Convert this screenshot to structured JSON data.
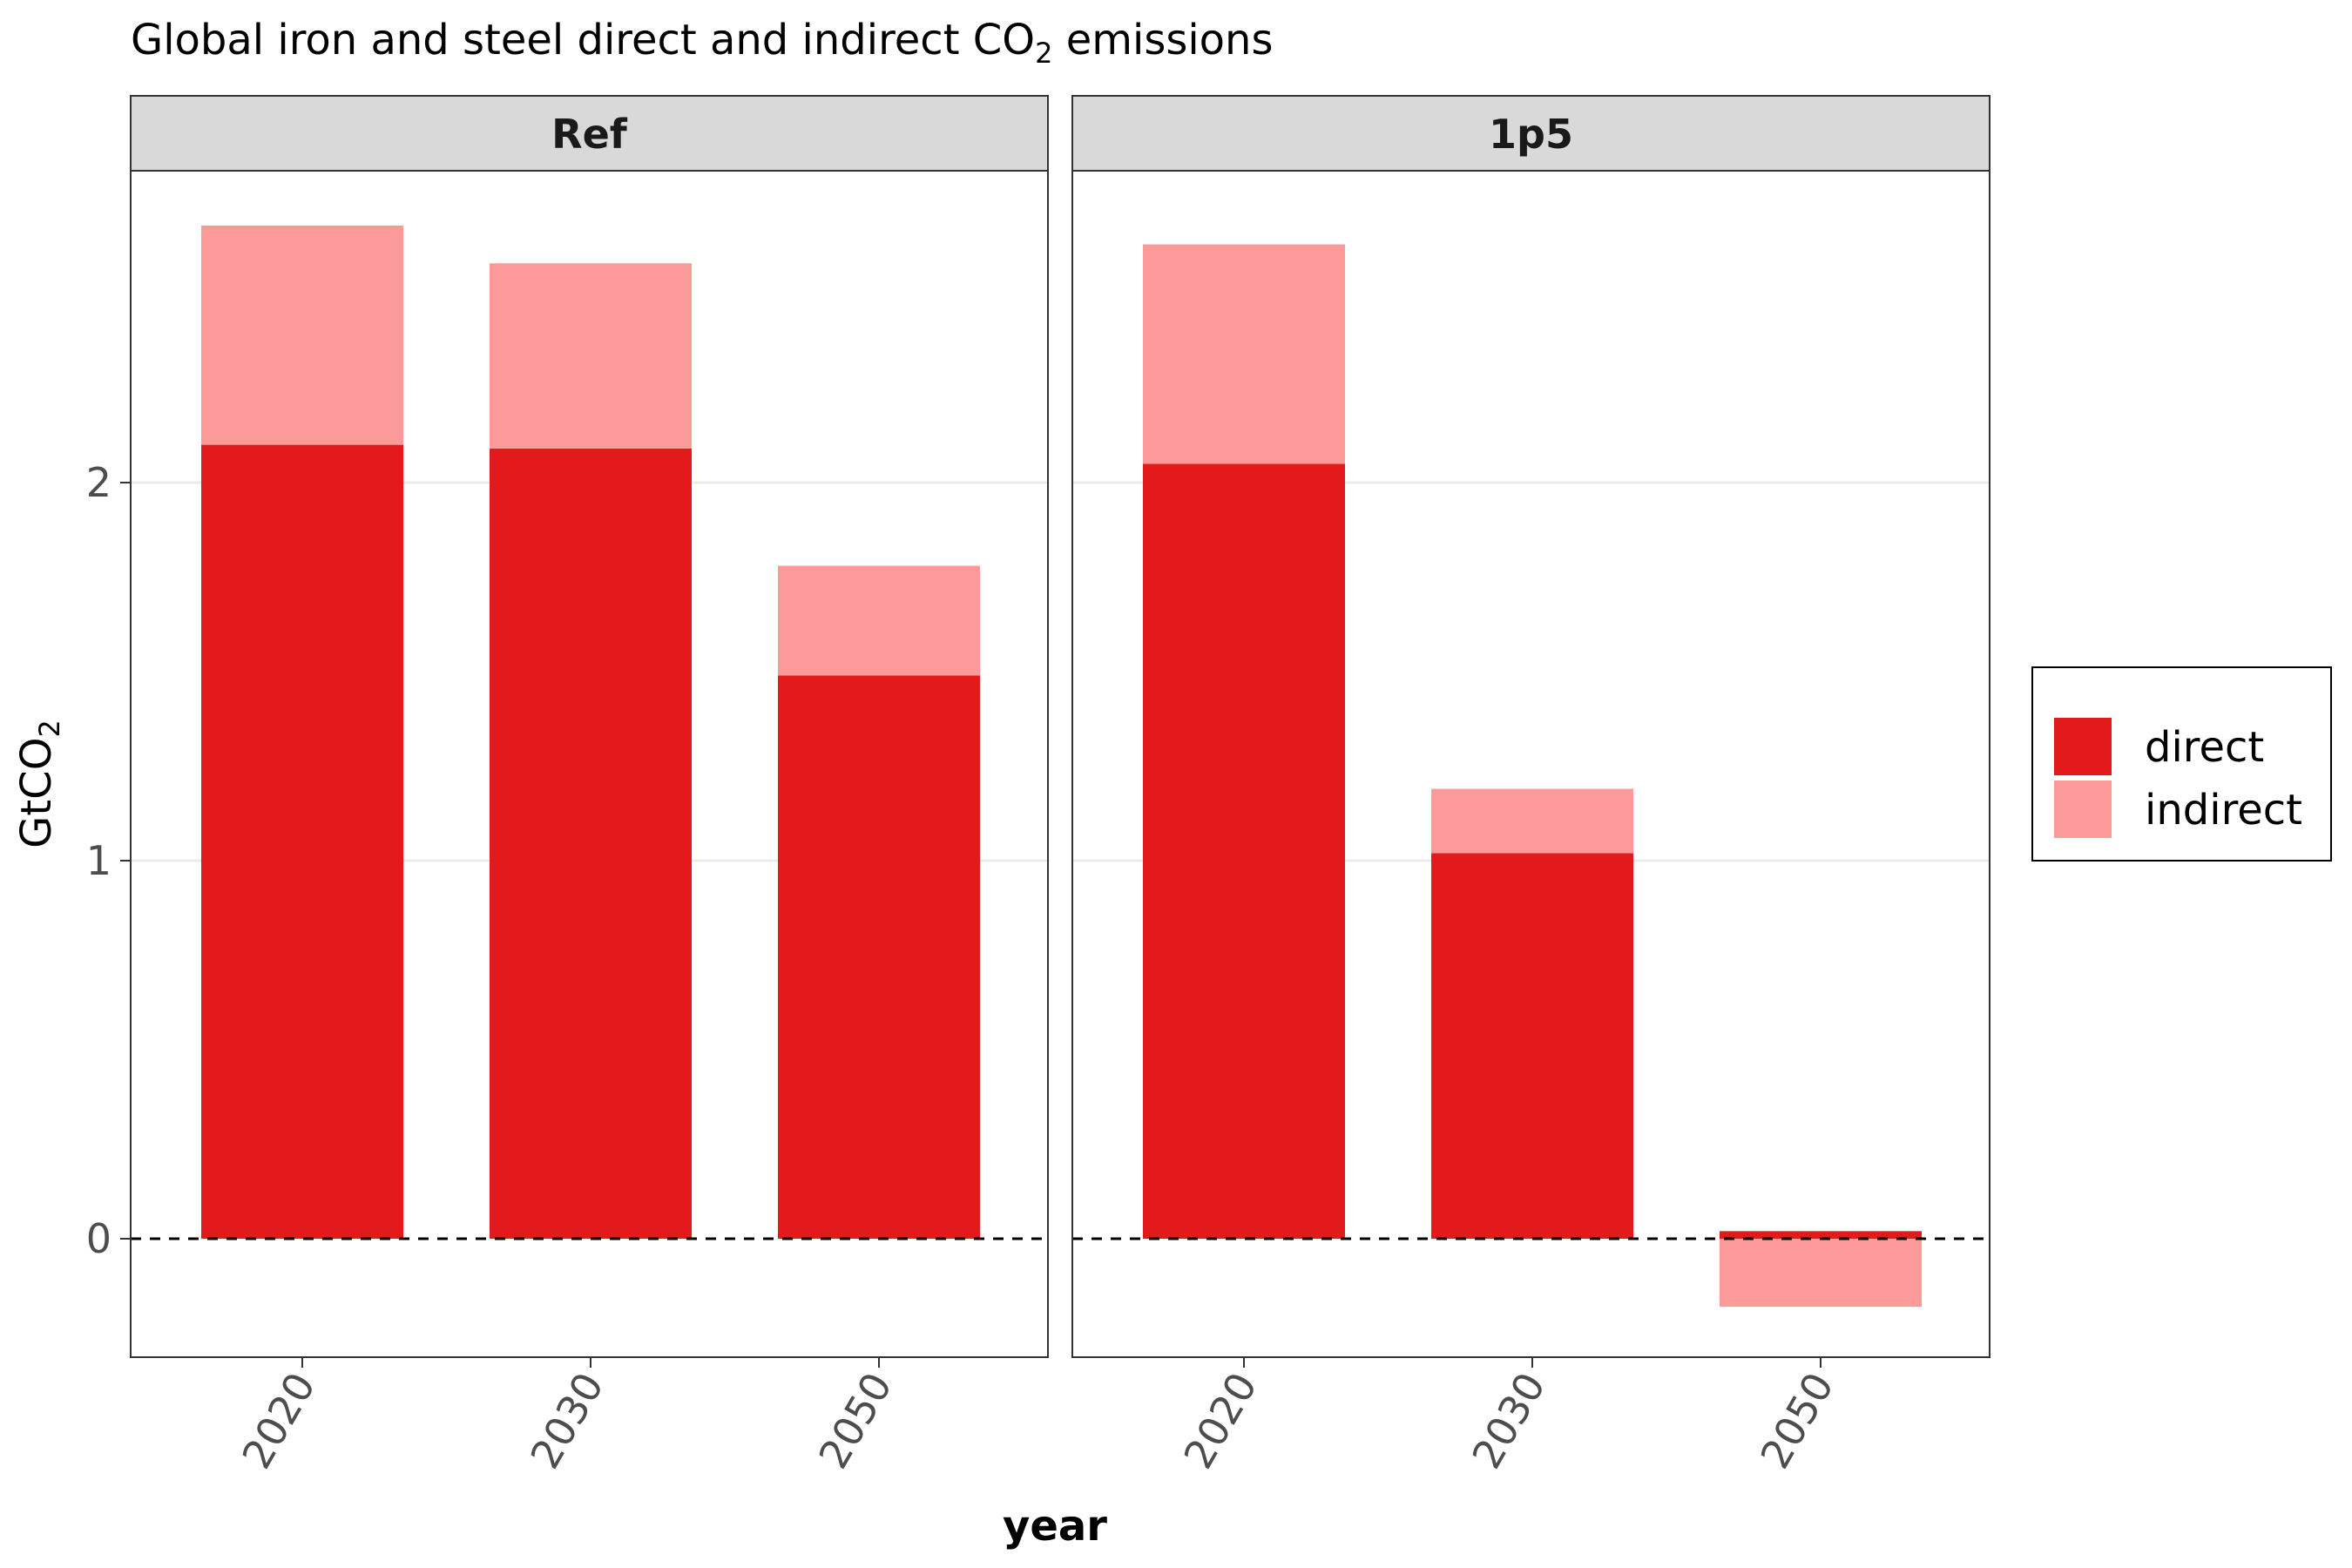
{
  "chart_data": {
    "type": "bar",
    "stacked": true,
    "title": {
      "main": "Global iron and steel direct and indirect CO",
      "sub": "2",
      "tail": " emissions"
    },
    "xlabel": "year",
    "ylabel": {
      "main": "GtCO",
      "sub": "2"
    },
    "categories": [
      "2020",
      "2030",
      "2050"
    ],
    "yticks": [
      "0",
      "1",
      "2"
    ],
    "ytick_values": [
      0,
      1,
      2
    ],
    "ylim": [
      -0.3,
      2.8
    ],
    "zero_line": "dashed",
    "grid": true,
    "legend_position": "right",
    "colors": {
      "direct": "#e31a1c",
      "indirect": "#fb9a99"
    },
    "legend": [
      {
        "name": "direct",
        "color": "#e31a1c"
      },
      {
        "name": "indirect",
        "color": "#fb9a99"
      }
    ],
    "panels": [
      {
        "label": "Ref",
        "series": [
          {
            "name": "direct",
            "values": [
              2.1,
              2.09,
              1.49
            ]
          },
          {
            "name": "indirect",
            "values": [
              0.58,
              0.49,
              0.29
            ]
          }
        ]
      },
      {
        "label": "1p5",
        "series": [
          {
            "name": "direct",
            "values": [
              2.05,
              1.02,
              0.02
            ]
          },
          {
            "name": "indirect",
            "values": [
              0.58,
              0.17,
              -0.18
            ]
          }
        ]
      }
    ]
  }
}
